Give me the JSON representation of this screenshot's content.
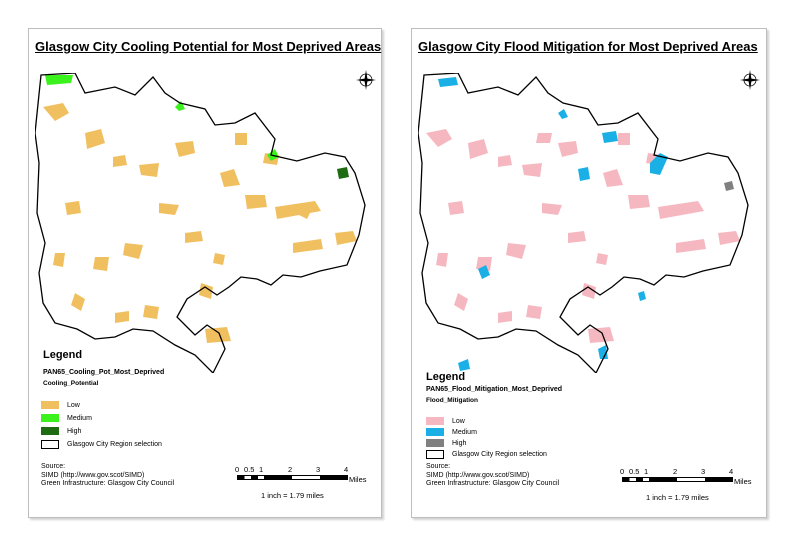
{
  "maps": [
    {
      "title": "Glasgow City Cooling Potential for Most Deprived Areas",
      "legend": {
        "heading": "Legend",
        "layer": "PAN65_Cooling_Pot_Most_Deprived",
        "field": "Cooling_Potential",
        "items": [
          {
            "label": "Low",
            "color": "#f0c060"
          },
          {
            "label": "Medium",
            "color": "#3cf21c"
          },
          {
            "label": "High",
            "color": "#1f6b12"
          },
          {
            "label": "Glasgow City Region selection",
            "color": "outline"
          }
        ]
      },
      "source": [
        "Source:",
        "SIMD (http://www.gov.scot/SIMD)",
        "Green Infrastructure: Glasgow City Council"
      ],
      "scale": {
        "ticks": [
          "0",
          "0.5",
          "1",
          "2",
          "3",
          "4"
        ],
        "unit": "Miles",
        "ratio": "1 inch = 1.79 miles"
      }
    },
    {
      "title": "Glasgow City Flood Mitigation for Most Deprived Areas",
      "legend": {
        "heading": "Legend",
        "layer": "PAN65_Flood_Mitigation_Most_Deprived",
        "field": "Flood_Mitigation",
        "items": [
          {
            "label": "Low",
            "color": "#f6b8c0"
          },
          {
            "label": "Medium",
            "color": "#1ab0e6"
          },
          {
            "label": "High",
            "color": "#808080"
          },
          {
            "label": "Glasgow City Region selection",
            "color": "outline"
          }
        ]
      },
      "source": [
        "Source:",
        "SIMD (http://www.gov.scot/SIMD)",
        "Green Infrastructure: Glasgow City Council"
      ],
      "scale": {
        "ticks": [
          "0",
          "0.5",
          "1",
          "2",
          "3",
          "4"
        ],
        "unit": "Miles",
        "ratio": "1 inch = 1.79 miles"
      }
    }
  ]
}
